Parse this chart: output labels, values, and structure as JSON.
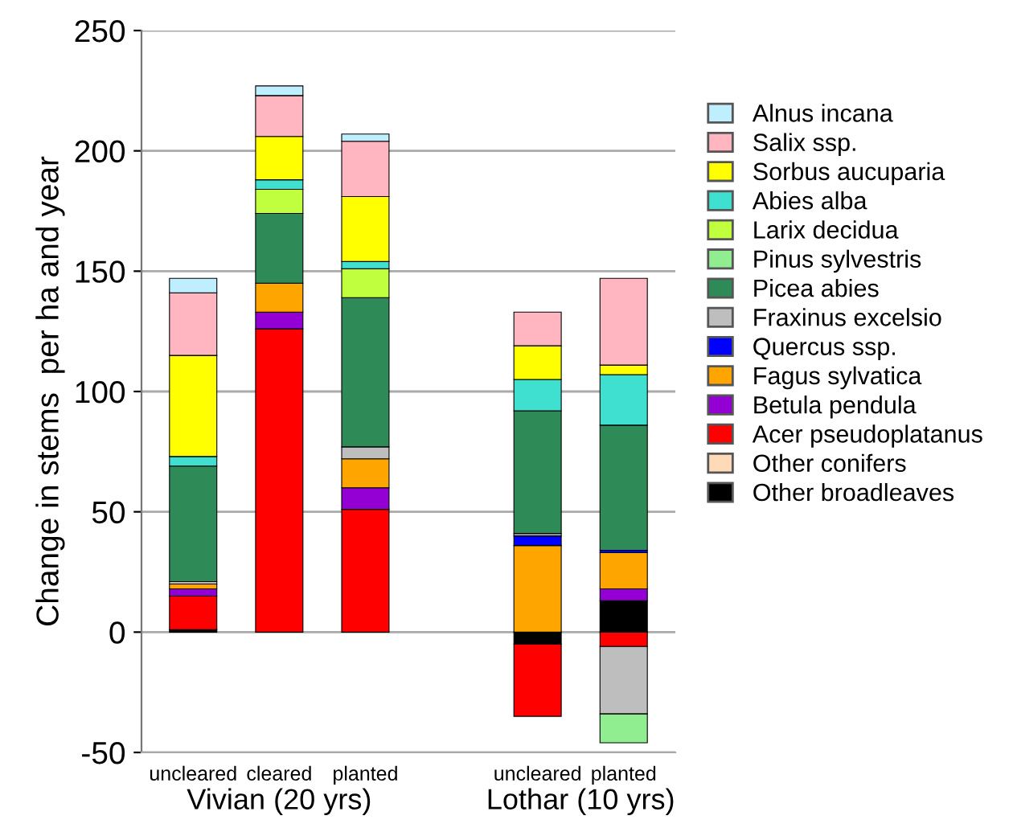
{
  "chart_data": {
    "type": "bar",
    "stacked": true,
    "ylabel": "Change in stems  per ha and year",
    "categories": [
      "uncleared",
      "cleared",
      "planted",
      null,
      "uncleared",
      "planted"
    ],
    "annotations": [
      "Vivian (20 yrs)",
      "Lothar (10 yrs)"
    ],
    "series": [
      {
        "name": "Other broadleaves",
        "color": "#000000",
        "values": [
          1,
          null,
          null,
          null,
          -5,
          13
        ]
      },
      {
        "name": "Other conifers",
        "color": "#ffdab9",
        "values": [
          null,
          null,
          null,
          null,
          null,
          null
        ]
      },
      {
        "name": "Acer pseudoplatanus",
        "color": "#ff0000",
        "values": [
          14,
          126,
          51,
          null,
          -30,
          -6
        ]
      },
      {
        "name": "Betula pendula",
        "color": "#9400d3",
        "values": [
          3,
          7,
          9,
          null,
          null,
          5
        ]
      },
      {
        "name": "Fagus sylvatica",
        "color": "#ffa500",
        "values": [
          2,
          12,
          12,
          null,
          36,
          15
        ]
      },
      {
        "name": "Quercus ssp.",
        "color": "#0000ff",
        "values": [
          null,
          null,
          null,
          null,
          4,
          1
        ]
      },
      {
        "name": "Fraxinus excelsio",
        "color": "#bebebe",
        "values": [
          1,
          null,
          5,
          null,
          1,
          -28
        ]
      },
      {
        "name": "Picea abies",
        "color": "#2e8b57",
        "values": [
          48,
          29,
          62,
          null,
          51,
          52
        ]
      },
      {
        "name": "Pinus sylvestris",
        "color": "#90ee90",
        "values": [
          null,
          null,
          null,
          null,
          null,
          -12
        ]
      },
      {
        "name": "Larix decidua",
        "color": "#c0ff3e",
        "values": [
          null,
          10,
          12,
          null,
          null,
          null
        ]
      },
      {
        "name": "Abies alba",
        "color": "#40e0d0",
        "values": [
          4,
          4,
          3,
          null,
          13,
          21
        ]
      },
      {
        "name": "Sorbus aucuparia",
        "color": "#ffff00",
        "values": [
          42,
          18,
          27,
          null,
          14,
          4
        ]
      },
      {
        "name": "Salix ssp.",
        "color": "#ffb6c1",
        "values": [
          26,
          17,
          23,
          null,
          14,
          36
        ]
      },
      {
        "name": "Alnus incana",
        "color": "#bfefff",
        "values": [
          6,
          4,
          3,
          null,
          null,
          null
        ]
      }
    ],
    "ylim": [
      -50,
      250
    ],
    "yticks": [
      -50,
      0,
      50,
      100,
      150,
      200,
      250
    ],
    "grid": "y",
    "legend": "right"
  }
}
